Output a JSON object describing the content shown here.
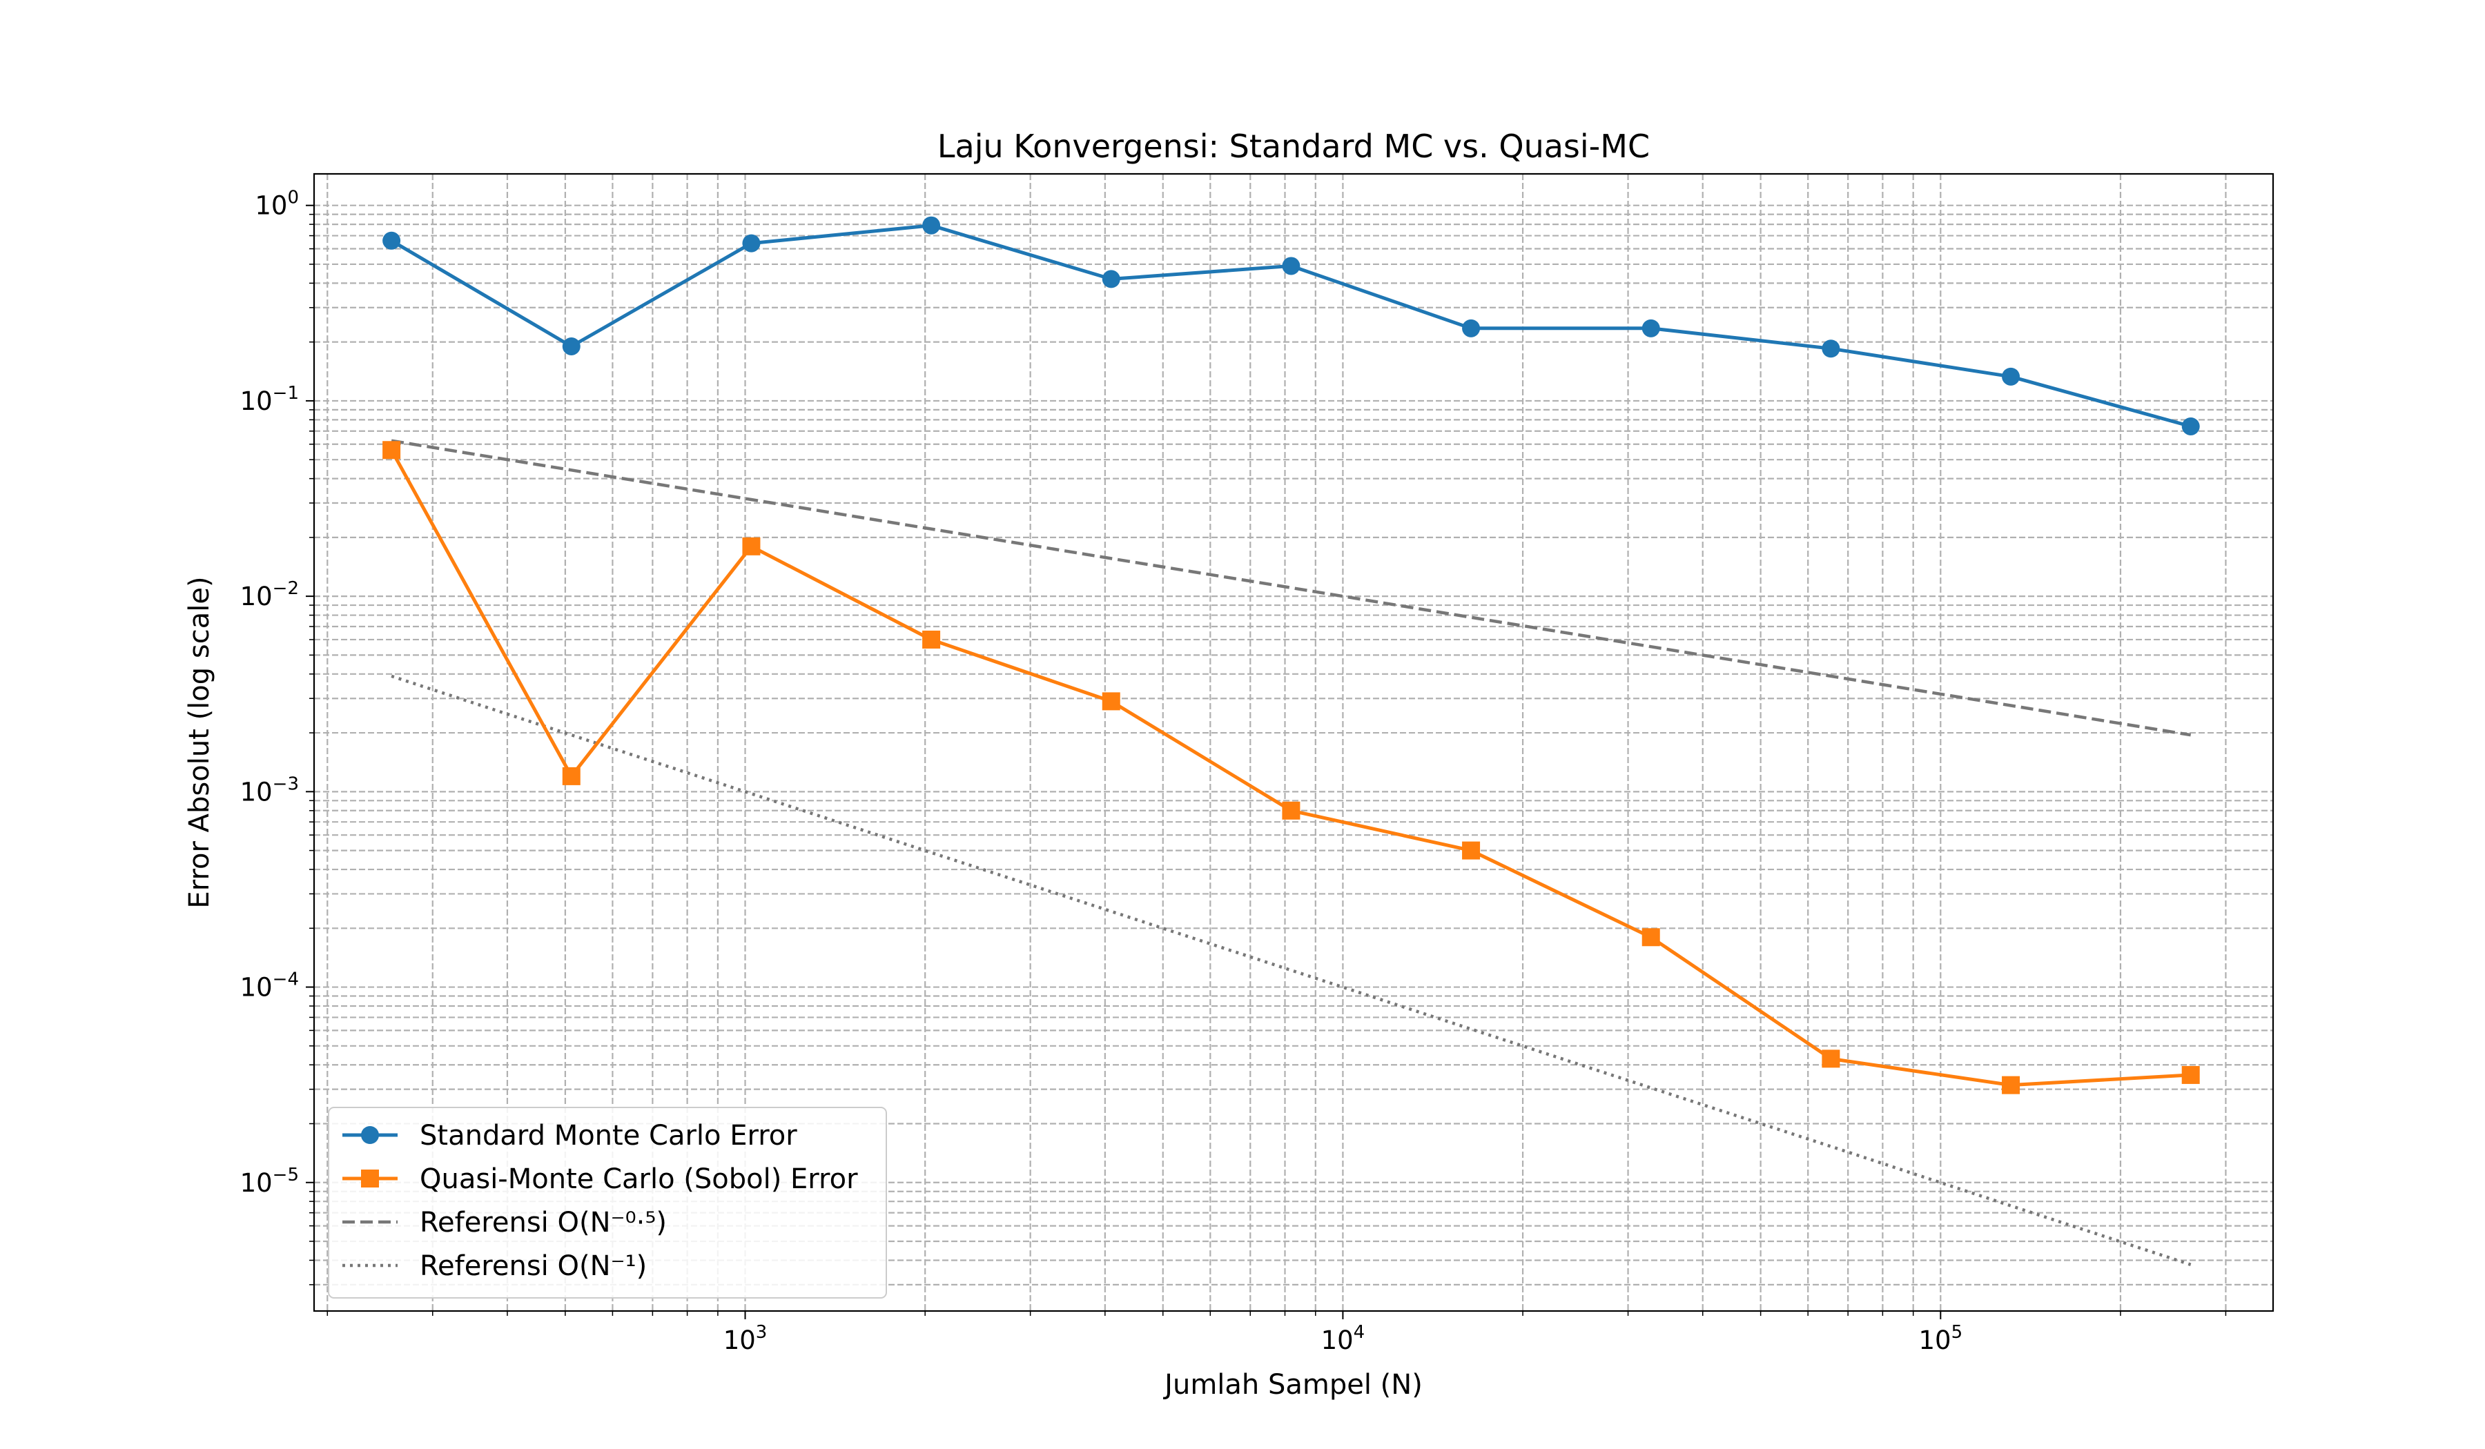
{
  "chart_data": {
    "type": "line",
    "title": "Laju Konvergensi: Standard MC vs. Quasi-MC",
    "xlabel": "Jumlah Sampel (N)",
    "ylabel": "Error Absolut (log scale)",
    "xscale": "log",
    "yscale": "log",
    "xlim": [
      190,
      360000
    ],
    "ylim": [
      2.2e-06,
      1.45
    ],
    "grid": "both (major and minor, dashed)",
    "legend_position": "lower-left",
    "x_tick_labels": [
      {
        "value": 1000,
        "base": "10",
        "exp": "3"
      },
      {
        "value": 10000,
        "base": "10",
        "exp": "4"
      },
      {
        "value": 100000,
        "base": "10",
        "exp": "5"
      }
    ],
    "y_tick_labels": [
      {
        "value": 1,
        "base": "10",
        "exp": "0"
      },
      {
        "value": 0.1,
        "base": "10",
        "exp": "−1"
      },
      {
        "value": 0.01,
        "base": "10",
        "exp": "−2"
      },
      {
        "value": 0.001,
        "base": "10",
        "exp": "−3"
      },
      {
        "value": 0.0001,
        "base": "10",
        "exp": "−4"
      },
      {
        "value": 1e-05,
        "base": "10",
        "exp": "−5"
      }
    ],
    "x": [
      256,
      512,
      1024,
      2048,
      4096,
      8192,
      16384,
      32768,
      65536,
      131072,
      262144
    ],
    "series": [
      {
        "name": "Standard Monte Carlo Error",
        "color": "#1f77b4",
        "marker": "circle",
        "line": "solid",
        "values": [
          0.66,
          0.19,
          0.64,
          0.79,
          0.42,
          0.49,
          0.235,
          0.235,
          0.185,
          0.133,
          0.074
        ]
      },
      {
        "name": "Quasi-Monte Carlo (Sobol) Error",
        "color": "#ff7f0e",
        "marker": "square",
        "line": "solid",
        "values": [
          0.056,
          0.0012,
          0.018,
          0.006,
          0.0029,
          0.0008,
          0.0005,
          0.00018,
          4.3e-05,
          3.15e-05,
          3.55e-05
        ]
      },
      {
        "name": "Referensi O(N⁻⁰·⁵)",
        "color": "#777777",
        "marker": "none",
        "line": "dashed",
        "values": [
          0.0625,
          0.0442,
          0.03125,
          0.0221,
          0.0156,
          0.01105,
          0.0078,
          0.00552,
          0.0039,
          0.00276,
          0.00195
        ]
      },
      {
        "name": "Referensi O(N⁻¹)",
        "color": "#777777",
        "marker": "none",
        "line": "dotted",
        "values": [
          0.0039,
          0.00195,
          0.000977,
          0.000488,
          0.000244,
          0.000122,
          6.1e-05,
          3.05e-05,
          1.53e-05,
          7.6e-06,
          3.8e-06
        ]
      }
    ]
  }
}
